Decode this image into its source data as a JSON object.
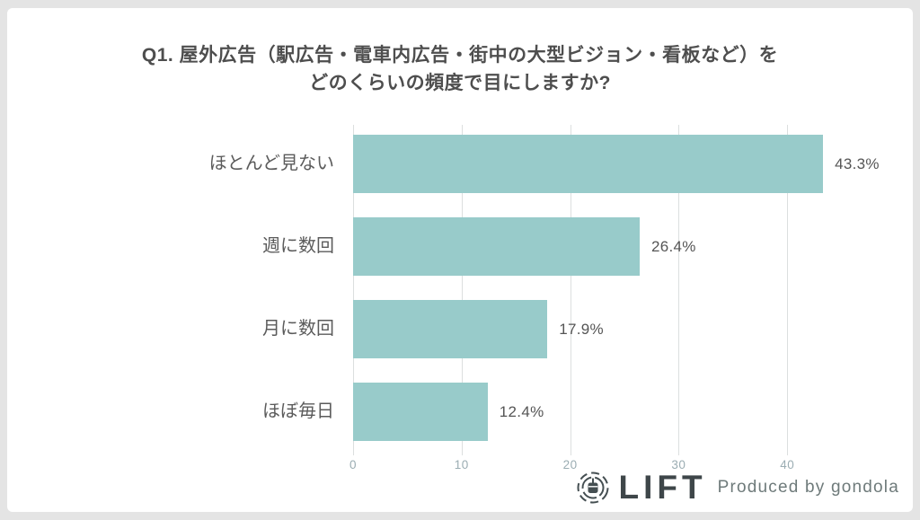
{
  "page": {
    "background_color": "#e4e4e4",
    "card_background": "#ffffff"
  },
  "chart": {
    "title_line1": "Q1. 屋外広告（駅広告・電車内広告・街中の大型ビジョン・看板など）を",
    "title_line2": "どのくらいの頻度で目にしますか?"
  },
  "chart_data": {
    "type": "bar",
    "orientation": "horizontal",
    "title": "Q1. 屋外広告（駅広告・電車内広告・街中の大型ビジョン・看板など）を どのくらいの頻度で目にしますか?",
    "categories": [
      "ほとんど見ない",
      "週に数回",
      "月に数回",
      "ほぼ毎日"
    ],
    "values": [
      43.3,
      26.4,
      17.9,
      12.4
    ],
    "value_labels": [
      "43.3%",
      "26.4%",
      "17.9%",
      "12.4%"
    ],
    "unit": "%",
    "xticks": [
      0,
      10,
      20,
      30,
      40
    ],
    "xlim": [
      0,
      49
    ],
    "grid": true,
    "legend": false,
    "bar_color": "#98cbca",
    "grid_color": "#dcdfdf",
    "tick_color": "#9badb3",
    "label_color": "#5b5b5b",
    "value_color": "#555555"
  },
  "footer": {
    "brand": "LIFT",
    "tagline": "Produced by gondola",
    "logo_icon": "gondola-lift-icon"
  }
}
